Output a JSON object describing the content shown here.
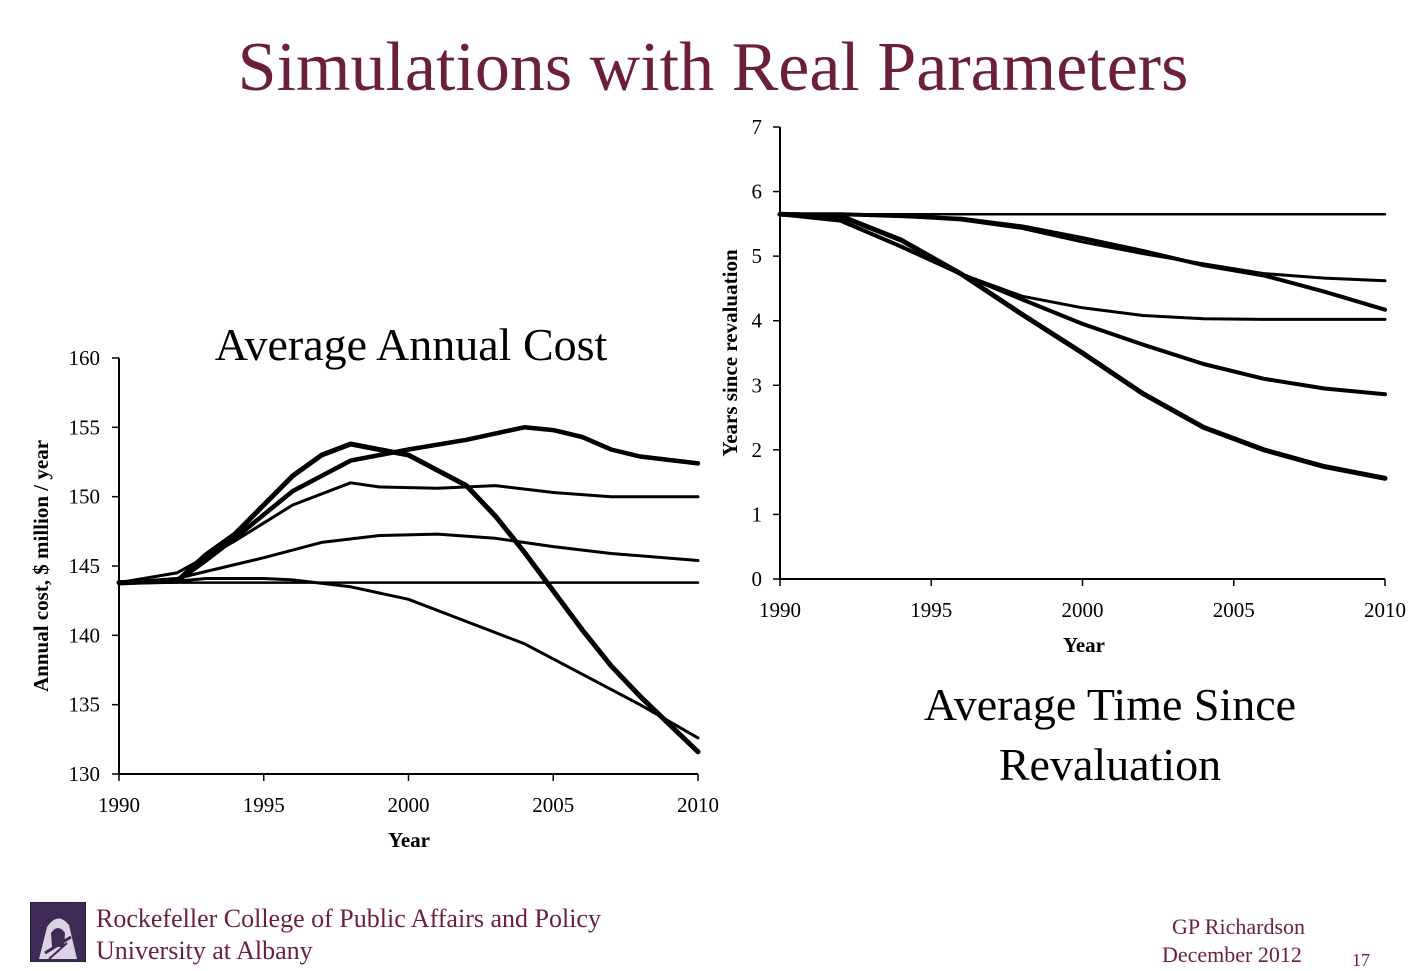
{
  "slide": {
    "title": "Simulations with Real Parameters"
  },
  "footer": {
    "org_line1": "Rockefeller College of Public Affairs and Policy",
    "org_line2": "University at Albany",
    "author": "GP Richardson",
    "date": "December 2012",
    "page": "17"
  },
  "colors": {
    "title": "#6b1f3a",
    "line": "#000000"
  },
  "chart_data": [
    {
      "type": "line",
      "title": "Average Annual Cost",
      "xlabel": "Year",
      "ylabel": "Annual cost, $ million / year",
      "xlim": [
        1990,
        2010
      ],
      "ylim": [
        130,
        160
      ],
      "xticks": [
        1990,
        1995,
        2000,
        2005,
        2010
      ],
      "yticks": [
        130,
        135,
        140,
        145,
        150,
        155,
        160
      ],
      "grid": false,
      "series": [
        {
          "width": 2.5,
          "points": [
            [
              1990,
              143.8
            ],
            [
              2010,
              143.8
            ]
          ]
        },
        {
          "width": 3.0,
          "points": [
            [
              1990,
              143.7
            ],
            [
              1992,
              143.9
            ],
            [
              1993,
              144.1
            ],
            [
              1995,
              144.1
            ],
            [
              1996,
              144.0
            ],
            [
              1998,
              143.5
            ],
            [
              2000,
              142.6
            ],
            [
              2002,
              141.0
            ],
            [
              2004,
              139.4
            ],
            [
              2006,
              137.2
            ],
            [
              2008,
              135.0
            ],
            [
              2010,
              132.6
            ]
          ]
        },
        {
          "width": 3.0,
          "points": [
            [
              1990,
              143.8
            ],
            [
              1992,
              144.1
            ],
            [
              1993,
              144.6
            ],
            [
              1995,
              145.6
            ],
            [
              1997,
              146.7
            ],
            [
              1999,
              147.2
            ],
            [
              2001,
              147.3
            ],
            [
              2003,
              147.0
            ],
            [
              2005,
              146.4
            ],
            [
              2007,
              145.9
            ],
            [
              2010,
              145.4
            ]
          ]
        },
        {
          "width": 3.0,
          "points": [
            [
              1990,
              143.8
            ],
            [
              1992,
              144.5
            ],
            [
              1994,
              146.8
            ],
            [
              1996,
              149.4
            ],
            [
              1998,
              151.0
            ],
            [
              1999,
              150.7
            ],
            [
              2001,
              150.6
            ],
            [
              2003,
              150.8
            ],
            [
              2005,
              150.3
            ],
            [
              2007,
              150.0
            ],
            [
              2010,
              150.0
            ]
          ]
        },
        {
          "width": 4.5,
          "points": [
            [
              1990,
              143.8
            ],
            [
              1992,
              143.9
            ],
            [
              1993,
              145.4
            ],
            [
              1994,
              147.0
            ],
            [
              1996,
              150.4
            ],
            [
              1998,
              152.6
            ],
            [
              2000,
              153.4
            ],
            [
              2002,
              154.1
            ],
            [
              2004,
              155.0
            ],
            [
              2005,
              154.8
            ],
            [
              2006,
              154.3
            ],
            [
              2007,
              153.4
            ],
            [
              2008,
              152.9
            ],
            [
              2010,
              152.4
            ]
          ]
        },
        {
          "width": 5.0,
          "points": [
            [
              1990,
              143.8
            ],
            [
              1992,
              143.9
            ],
            [
              1993,
              145.8
            ],
            [
              1994,
              147.3
            ],
            [
              1996,
              151.5
            ],
            [
              1997,
              153.0
            ],
            [
              1998,
              153.8
            ],
            [
              2000,
              153.0
            ],
            [
              2002,
              150.8
            ],
            [
              2003,
              148.6
            ],
            [
              2004,
              146.0
            ],
            [
              2005,
              143.2
            ],
            [
              2006,
              140.4
            ],
            [
              2007,
              137.8
            ],
            [
              2008,
              135.6
            ],
            [
              2009,
              133.6
            ],
            [
              2010,
              131.6
            ]
          ]
        }
      ]
    },
    {
      "type": "line",
      "title": "Average Time Since Revaluation",
      "xlabel": "Year",
      "ylabel": "Years since revaluation",
      "xlim": [
        1990,
        2010
      ],
      "ylim": [
        0,
        7
      ],
      "xticks": [
        1990,
        1995,
        2000,
        2005,
        2010
      ],
      "yticks": [
        0,
        1,
        2,
        3,
        4,
        5,
        6,
        7
      ],
      "grid": false,
      "series": [
        {
          "width": 2.5,
          "points": [
            [
              1990,
              5.65
            ],
            [
              2010,
              5.65
            ]
          ]
        },
        {
          "width": 3.0,
          "points": [
            [
              1990,
              5.65
            ],
            [
              1992,
              5.65
            ],
            [
              1994,
              5.62
            ],
            [
              1996,
              5.56
            ],
            [
              1998,
              5.43
            ],
            [
              2000,
              5.22
            ],
            [
              2002,
              5.04
            ],
            [
              2004,
              4.88
            ],
            [
              2006,
              4.73
            ],
            [
              2008,
              4.66
            ],
            [
              2010,
              4.62
            ]
          ]
        },
        {
          "width": 4.0,
          "points": [
            [
              1990,
              5.65
            ],
            [
              1992,
              5.65
            ],
            [
              1994,
              5.62
            ],
            [
              1996,
              5.58
            ],
            [
              1998,
              5.46
            ],
            [
              2000,
              5.28
            ],
            [
              2002,
              5.08
            ],
            [
              2004,
              4.86
            ],
            [
              2006,
              4.7
            ],
            [
              2008,
              4.45
            ],
            [
              2010,
              4.17
            ]
          ]
        },
        {
          "width": 3.0,
          "points": [
            [
              1990,
              5.65
            ],
            [
              1992,
              5.55
            ],
            [
              1994,
              5.15
            ],
            [
              1996,
              4.72
            ],
            [
              1998,
              4.38
            ],
            [
              2000,
              4.2
            ],
            [
              2002,
              4.08
            ],
            [
              2004,
              4.03
            ],
            [
              2006,
              4.02
            ],
            [
              2010,
              4.02
            ]
          ]
        },
        {
          "width": 4.0,
          "points": [
            [
              1990,
              5.65
            ],
            [
              1992,
              5.55
            ],
            [
              1994,
              5.15
            ],
            [
              1996,
              4.72
            ],
            [
              1998,
              4.33
            ],
            [
              2000,
              3.95
            ],
            [
              2002,
              3.63
            ],
            [
              2004,
              3.33
            ],
            [
              2006,
              3.1
            ],
            [
              2008,
              2.95
            ],
            [
              2010,
              2.86
            ]
          ]
        },
        {
          "width": 5.0,
          "points": [
            [
              1990,
              5.65
            ],
            [
              1992,
              5.62
            ],
            [
              1994,
              5.25
            ],
            [
              1996,
              4.72
            ],
            [
              1998,
              4.1
            ],
            [
              2000,
              3.5
            ],
            [
              2002,
              2.87
            ],
            [
              2004,
              2.35
            ],
            [
              2006,
              2.0
            ],
            [
              2008,
              1.74
            ],
            [
              2010,
              1.56
            ]
          ]
        }
      ]
    }
  ]
}
